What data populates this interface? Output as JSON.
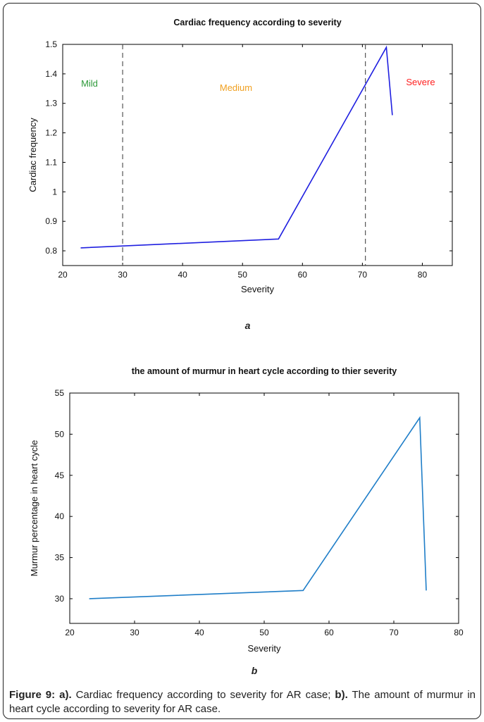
{
  "chart_data": [
    {
      "type": "line",
      "title": "Cardiac frequency according to severity",
      "xlabel": "Severity",
      "ylabel": "Cardiac frequency",
      "xlim": [
        20,
        85
      ],
      "ylim": [
        0.75,
        1.5
      ],
      "xticks": [
        "20",
        "30",
        "40",
        "50",
        "60",
        "70",
        "80"
      ],
      "yticks": [
        "0.8",
        "0.9",
        "1",
        "1.1",
        "1.2",
        "1.3",
        "1.4",
        "1.5"
      ],
      "series": [
        {
          "x": [
            23,
            56,
            74,
            75
          ],
          "y": [
            0.81,
            0.84,
            1.49,
            1.26
          ],
          "color": "#1f1fe0"
        }
      ],
      "vlines": [
        30,
        70.5
      ],
      "regions": [
        {
          "label": "Mild",
          "color": "#2e9a3a"
        },
        {
          "label": "Medium",
          "color": "#f0a020"
        },
        {
          "label": "Severe",
          "color": "#ff2020"
        }
      ],
      "panel_label": "a"
    },
    {
      "type": "line",
      "title": "the amount of murmur in heart cycle according to thier severity",
      "xlabel": "Severity",
      "ylabel": "Murmur percentage in heart cycle",
      "xlim": [
        20,
        80
      ],
      "ylim": [
        27,
        55
      ],
      "xticks": [
        "20",
        "30",
        "40",
        "50",
        "60",
        "70",
        "80"
      ],
      "yticks": [
        "30",
        "35",
        "40",
        "45",
        "50",
        "55"
      ],
      "series": [
        {
          "x": [
            23,
            56,
            74,
            75
          ],
          "y": [
            30,
            31,
            52,
            31
          ],
          "color": "#1f7ec8"
        }
      ],
      "panel_label": "b"
    }
  ],
  "caption": {
    "label": "Figure 9:",
    "a_label": "a).",
    "a_text": "Cardiac frequency according to severity for AR case;",
    "b_label": "b).",
    "b_text": "The amount of murmur in heart cycle according to severity for AR case."
  },
  "colors": {
    "caption_label": "#222222",
    "axis": "#000000"
  }
}
